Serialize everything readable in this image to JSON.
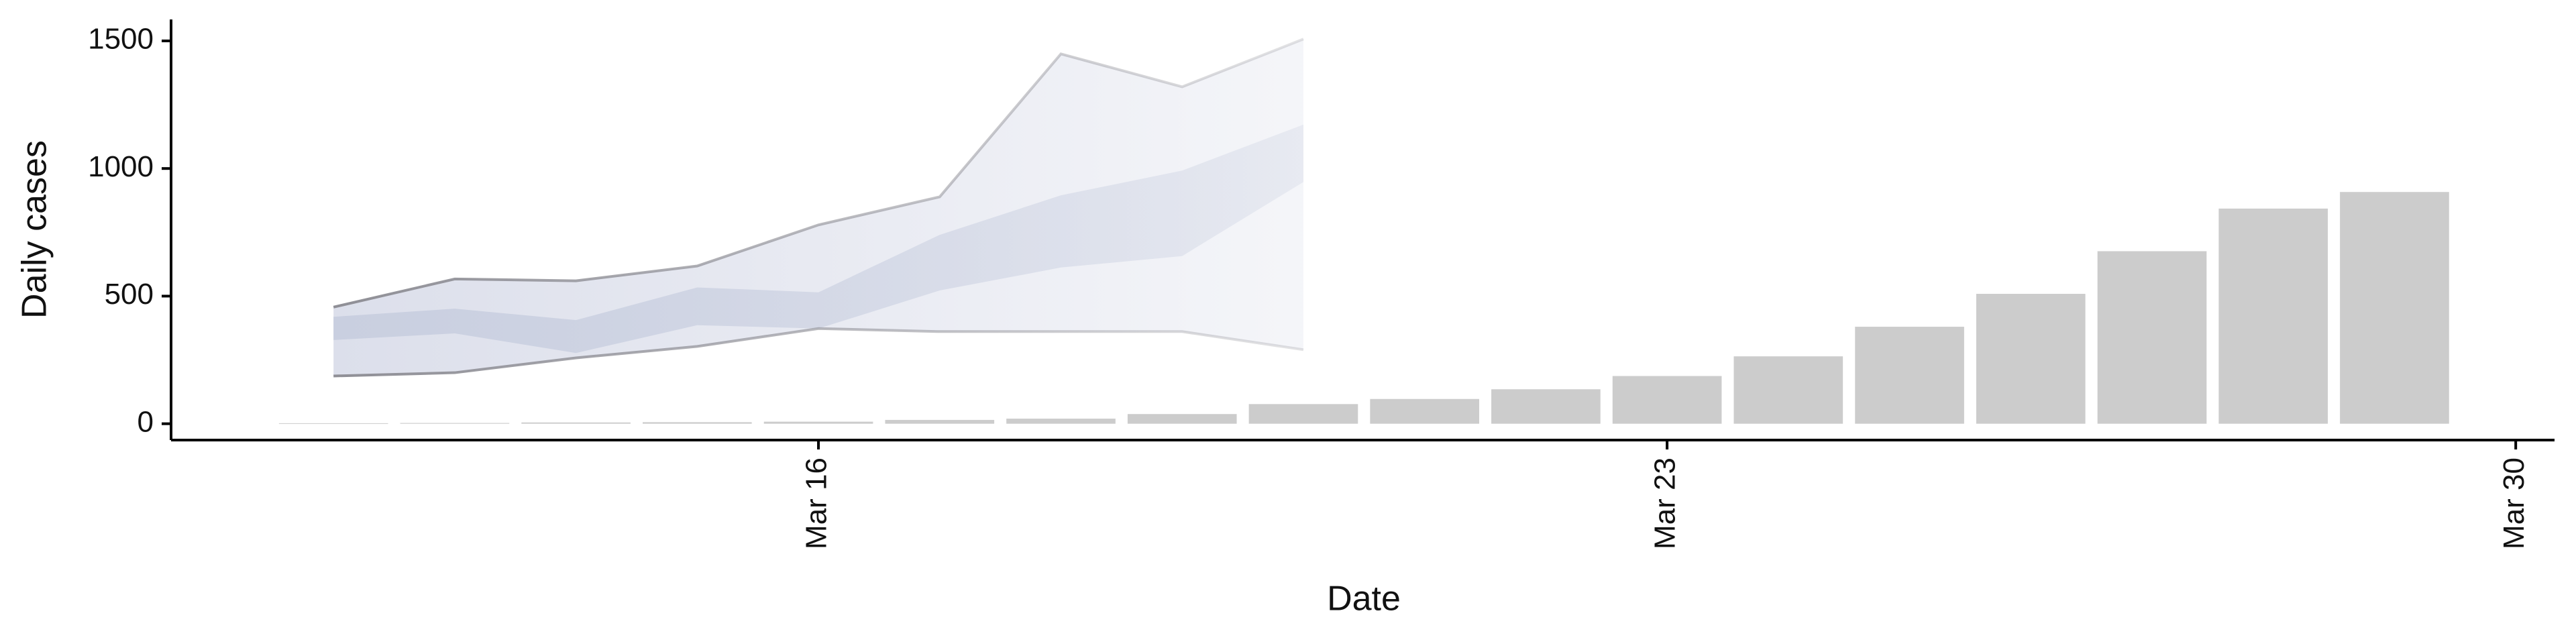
{
  "chart_data": {
    "type": "bar",
    "xlabel": "Date",
    "ylabel": "Daily cases",
    "x": [
      12,
      13,
      14,
      15,
      16,
      17,
      18,
      19,
      20,
      21,
      22,
      23,
      24,
      25,
      26,
      27,
      28,
      29
    ],
    "values": [
      2,
      3,
      5,
      6,
      8,
      15,
      20,
      38,
      77,
      97,
      135,
      187,
      264,
      380,
      509,
      676,
      843,
      908
    ],
    "color": "#cccccc",
    "ribbon": {
      "x": [
        12,
        13,
        14,
        15,
        16,
        17,
        18,
        19,
        20
      ],
      "outer_lower": [
        187,
        200,
        258,
        303,
        373,
        361,
        361,
        361,
        290
      ],
      "outer_upper": [
        457,
        567,
        560,
        618,
        779,
        889,
        1449,
        1320,
        1507
      ],
      "inner_lower": [
        328,
        354,
        277,
        386,
        373,
        522,
        612,
        657,
        947
      ],
      "inner_upper": [
        419,
        451,
        406,
        534,
        515,
        740,
        895,
        992,
        1172
      ],
      "outer_color": "#dcdfeb",
      "inner_color": "#c9cfe0",
      "line_color": "#8f8f96"
    },
    "xlim": [
      10.66,
      30.32
    ],
    "xticks": [
      {
        "value": 16,
        "label": "Mar 16"
      },
      {
        "value": 23,
        "label": "Mar 23"
      },
      {
        "value": 30,
        "label": "Mar 30"
      }
    ],
    "ylim": [
      -64,
      1584
    ],
    "yticks": [
      0,
      500,
      1000,
      1500
    ]
  }
}
